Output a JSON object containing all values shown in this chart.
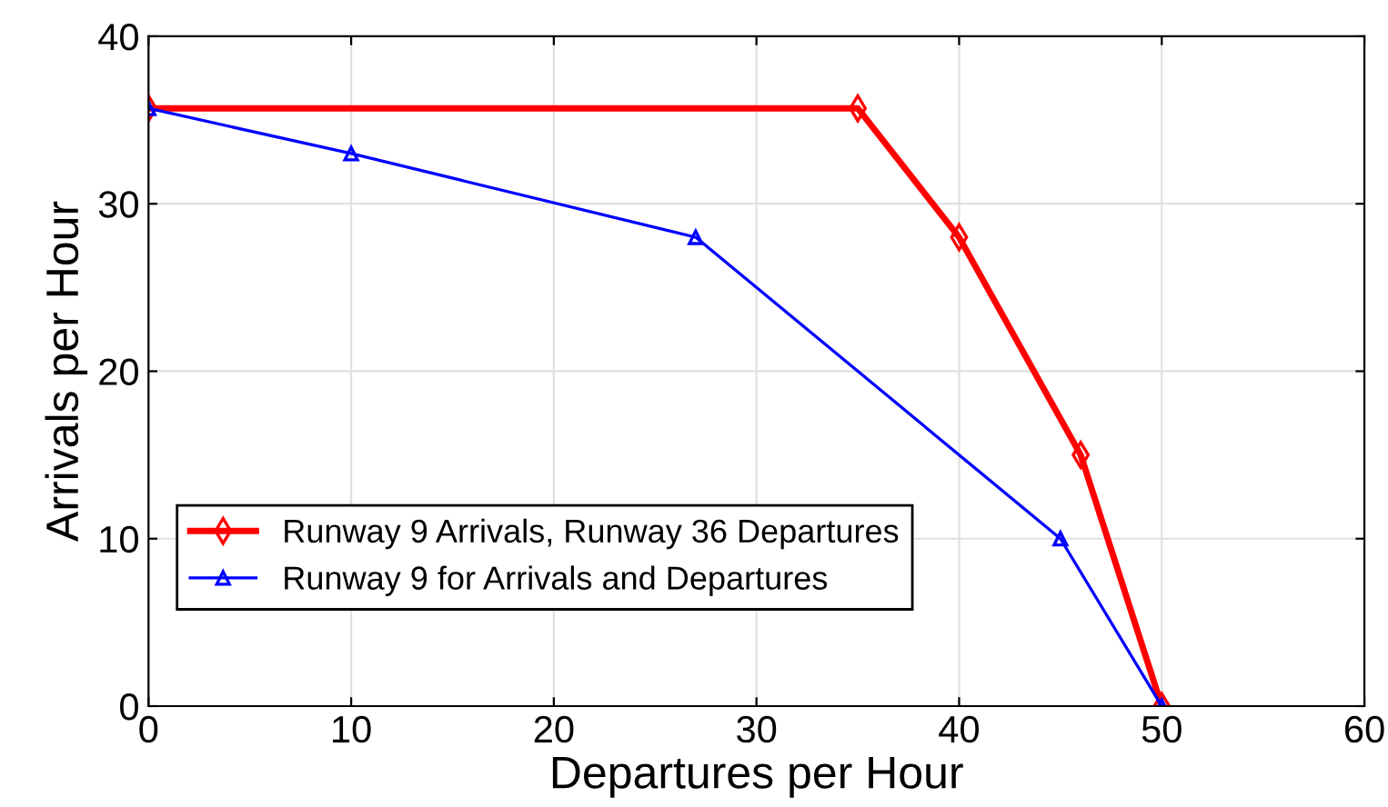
{
  "chart_data": {
    "type": "line",
    "xlabel": "Departures per Hour",
    "ylabel": "Arrivals per Hour",
    "xlim": [
      0,
      60
    ],
    "xticks": [
      0,
      10,
      20,
      30,
      40,
      50,
      60
    ],
    "ylim": [
      0,
      40
    ],
    "yticks": [
      0,
      10,
      20,
      30,
      40
    ],
    "grid": true,
    "legend": "bottom left",
    "line_style": "solid",
    "series": [
      {
        "name": "Runway 9 Arrivals, Runway 36 Departures",
        "color": "#ff0000",
        "marker": "diamond",
        "x": [
          0,
          35,
          40,
          46,
          50
        ],
        "values": [
          35.7,
          35.7,
          28,
          15,
          0
        ]
      },
      {
        "name": "Runway 9 for Arrivals and Departures",
        "color": "#0000ff",
        "marker": "triangle",
        "x": [
          0,
          10,
          27,
          45,
          50
        ],
        "values": [
          35.7,
          33,
          28,
          10,
          0
        ]
      }
    ]
  }
}
